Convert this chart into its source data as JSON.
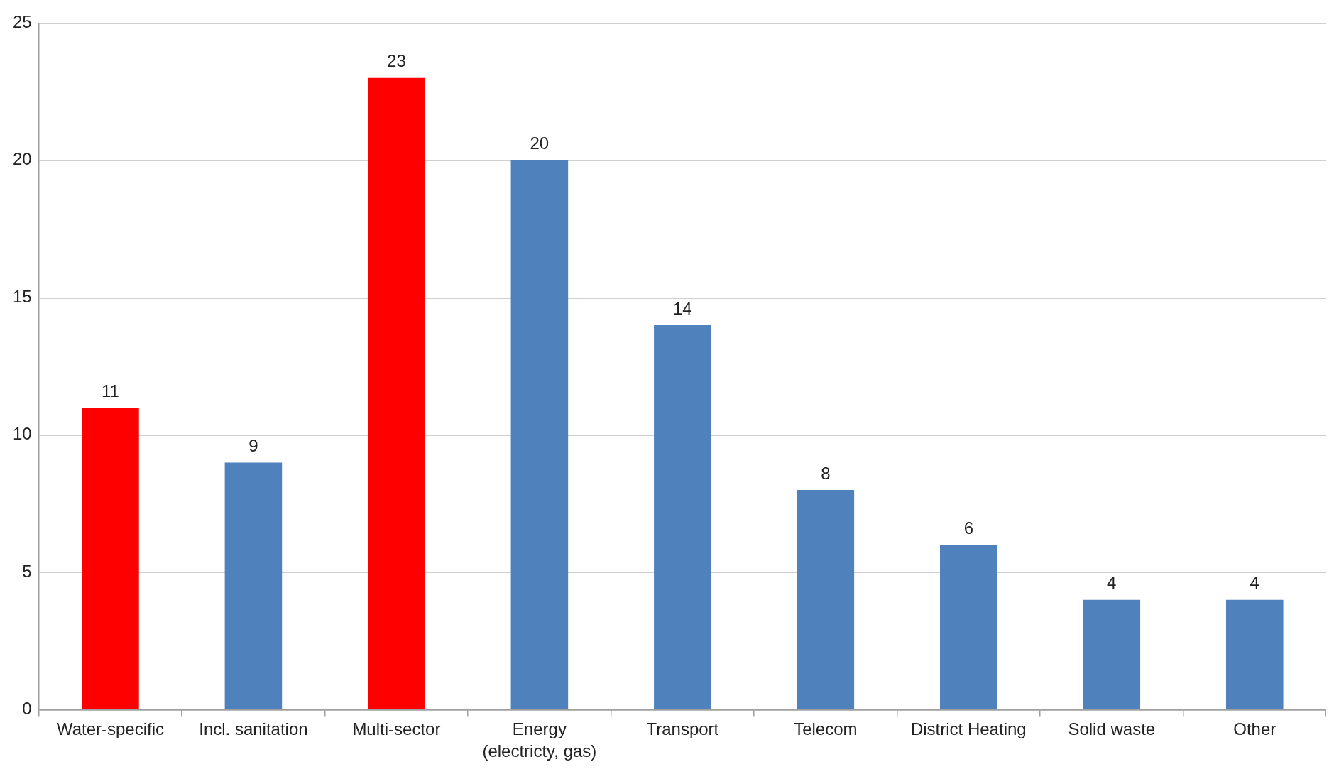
{
  "chart_data": {
    "type": "bar",
    "categories": [
      "Water-specific",
      "Incl. sanitation",
      "Multi-sector",
      "Energy (electricty, gas)",
      "Transport",
      "Telecom",
      "District Heating",
      "Solid waste",
      "Other"
    ],
    "values": [
      11,
      9,
      23,
      20,
      14,
      8,
      6,
      4,
      4
    ],
    "colors": [
      "#ff0000",
      "#4f81bd",
      "#ff0000",
      "#4f81bd",
      "#4f81bd",
      "#4f81bd",
      "#4f81bd",
      "#4f81bd",
      "#4f81bd"
    ],
    "ylim": [
      0,
      25
    ],
    "yticks": [
      0,
      5,
      10,
      15,
      20,
      25
    ],
    "grid": "y",
    "data_labels": true,
    "legend": false
  }
}
